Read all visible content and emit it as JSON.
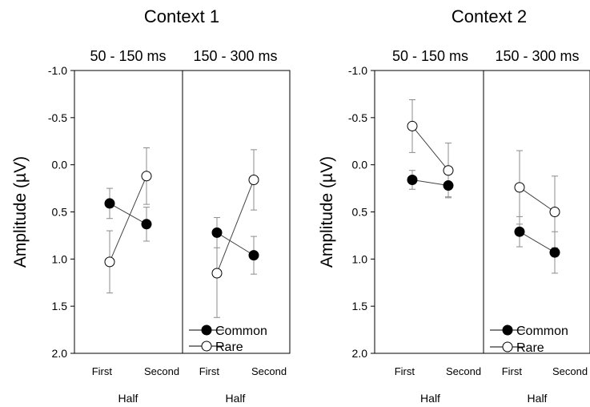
{
  "chart_data": [
    {
      "type": "line",
      "title": "Context 1",
      "ylabel": "Amplitude (µV)",
      "ylim": [
        -1.0,
        2.0
      ],
      "y_inverted": true,
      "yticks": [
        "-1.0",
        "-0.5",
        "0.0",
        "0.5",
        "1.0",
        "1.5",
        "2.0"
      ],
      "legend": {
        "position": "bottom-right",
        "entries": [
          "Common",
          "Rare"
        ]
      },
      "panels": [
        {
          "window": "50 - 150 ms",
          "categories": [
            "First",
            "Second"
          ],
          "xlabel": "Half",
          "series": [
            {
              "name": "Common",
              "marker": "filled",
              "values": [
                0.41,
                0.63
              ],
              "error": [
                0.16,
                0.18
              ]
            },
            {
              "name": "Rare",
              "marker": "open",
              "values": [
                1.03,
                0.12
              ],
              "error": [
                0.33,
                0.3
              ]
            }
          ]
        },
        {
          "window": "150 - 300 ms",
          "categories": [
            "First",
            "Second"
          ],
          "xlabel": "Half",
          "series": [
            {
              "name": "Common",
              "marker": "filled",
              "values": [
                0.72,
                0.96
              ],
              "error": [
                0.16,
                0.2
              ]
            },
            {
              "name": "Rare",
              "marker": "open",
              "values": [
                1.15,
                0.16
              ],
              "error": [
                0.47,
                0.32
              ]
            }
          ]
        }
      ]
    },
    {
      "type": "line",
      "title": "Context 2",
      "ylabel": "Amplitude (µV)",
      "ylim": [
        -1.0,
        2.0
      ],
      "y_inverted": true,
      "yticks": [
        "-1.0",
        "-0.5",
        "0.0",
        "0.5",
        "1.0",
        "1.5",
        "2.0"
      ],
      "legend": {
        "position": "bottom-right",
        "entries": [
          "Common",
          "Rare"
        ]
      },
      "panels": [
        {
          "window": "50 - 150 ms",
          "categories": [
            "First",
            "Second"
          ],
          "xlabel": "Half",
          "series": [
            {
              "name": "Common",
              "marker": "filled",
              "values": [
                0.16,
                0.22
              ],
              "error": [
                0.1,
                0.12
              ]
            },
            {
              "name": "Rare",
              "marker": "open",
              "values": [
                -0.41,
                0.06
              ],
              "error": [
                0.28,
                0.29
              ]
            }
          ]
        },
        {
          "window": "150 - 300 ms",
          "categories": [
            "First",
            "Second"
          ],
          "xlabel": "Half",
          "series": [
            {
              "name": "Common",
              "marker": "filled",
              "values": [
                0.71,
                0.93
              ],
              "error": [
                0.16,
                0.22
              ]
            },
            {
              "name": "Rare",
              "marker": "open",
              "values": [
                0.24,
                0.5
              ],
              "error": [
                0.39,
                0.38
              ]
            }
          ]
        }
      ]
    }
  ]
}
